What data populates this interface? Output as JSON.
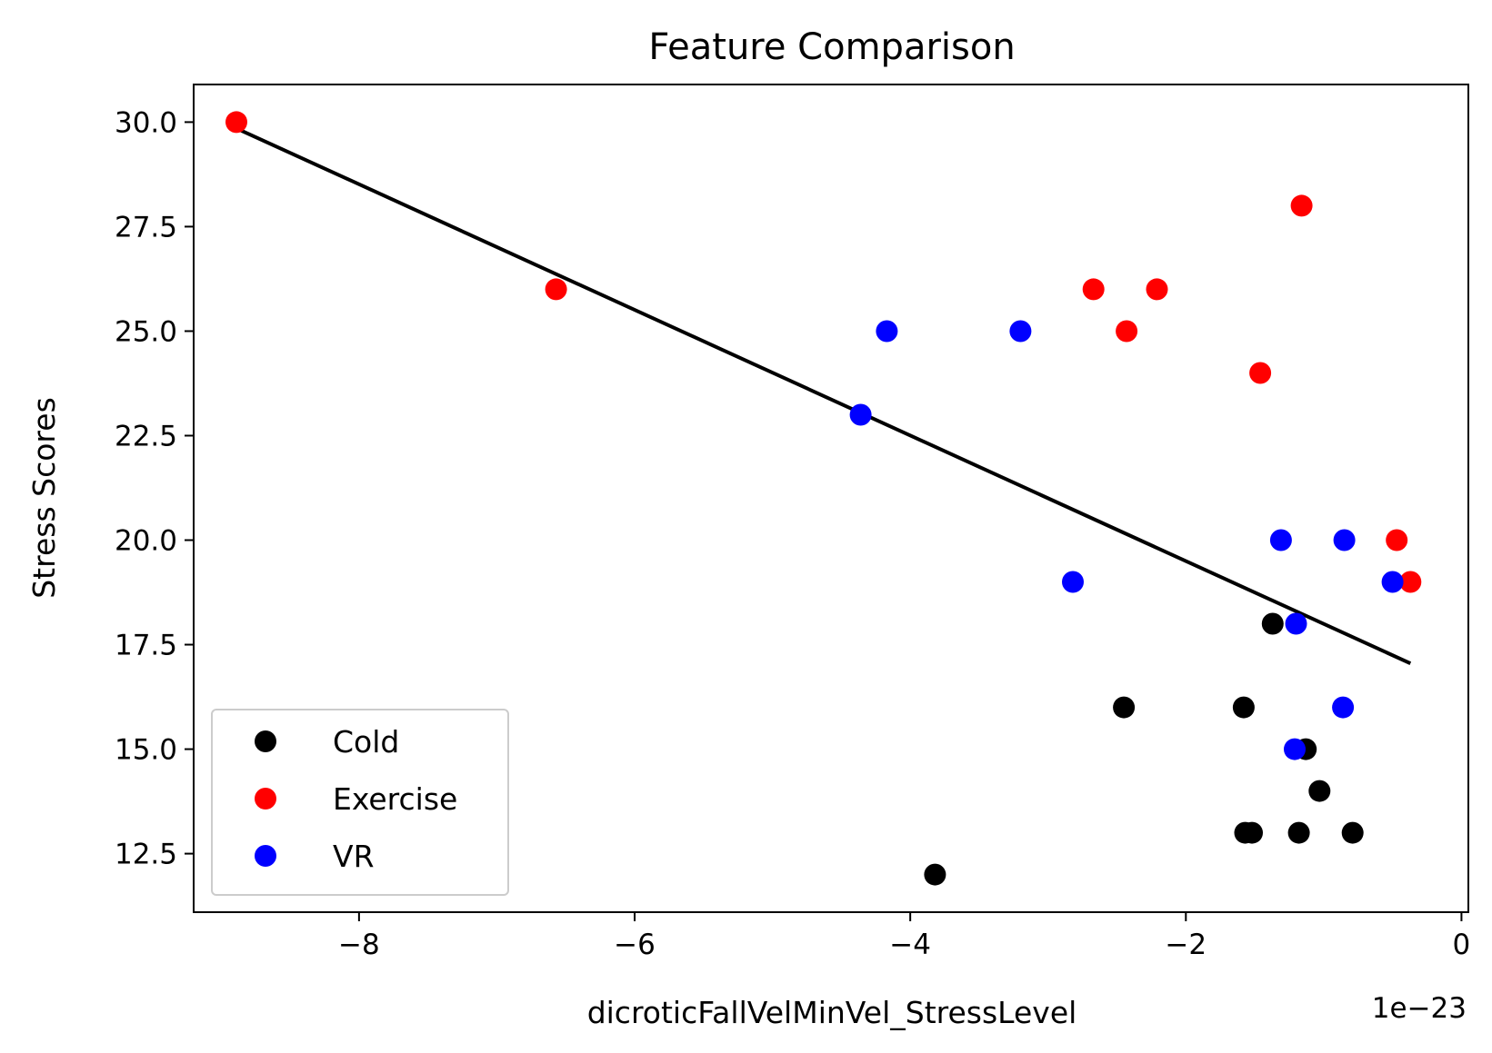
{
  "chart_data": {
    "type": "scatter",
    "title": "Feature Comparison",
    "xlabel": "dicroticFallVelMinVel_StressLevel",
    "ylabel": "Stress Scores",
    "x_offset_label": "1e−23",
    "xlim": [
      -9.2,
      0.05
    ],
    "ylim": [
      11.1,
      30.9
    ],
    "xticks": [
      -8,
      -6,
      -4,
      -2,
      0
    ],
    "xtick_labels": [
      "−8",
      "−6",
      "−4",
      "−2",
      "0"
    ],
    "yticks": [
      12.5,
      15.0,
      17.5,
      20.0,
      22.5,
      25.0,
      27.5,
      30.0
    ],
    "ytick_labels": [
      "12.5",
      "15.0",
      "17.5",
      "20.0",
      "22.5",
      "25.0",
      "27.5",
      "30.0"
    ],
    "legend_position": "lower-left",
    "series": [
      {
        "name": "Cold",
        "color": "#000000",
        "points": [
          {
            "x": -3.82,
            "y": 12
          },
          {
            "x": -2.45,
            "y": 16
          },
          {
            "x": -1.58,
            "y": 16
          },
          {
            "x": -1.57,
            "y": 13
          },
          {
            "x": -1.52,
            "y": 13
          },
          {
            "x": -1.37,
            "y": 18
          },
          {
            "x": -1.18,
            "y": 13
          },
          {
            "x": -1.13,
            "y": 15
          },
          {
            "x": -1.03,
            "y": 14
          },
          {
            "x": -0.79,
            "y": 13
          }
        ]
      },
      {
        "name": "Exercise",
        "color": "#ff0000",
        "points": [
          {
            "x": -8.89,
            "y": 30
          },
          {
            "x": -6.57,
            "y": 26
          },
          {
            "x": -2.67,
            "y": 26
          },
          {
            "x": -2.43,
            "y": 25
          },
          {
            "x": -2.21,
            "y": 26
          },
          {
            "x": -1.46,
            "y": 24
          },
          {
            "x": -1.16,
            "y": 28
          },
          {
            "x": -0.47,
            "y": 20
          },
          {
            "x": -0.37,
            "y": 19
          }
        ]
      },
      {
        "name": "VR",
        "color": "#0000ff",
        "points": [
          {
            "x": -4.36,
            "y": 23
          },
          {
            "x": -4.17,
            "y": 25
          },
          {
            "x": -3.2,
            "y": 25
          },
          {
            "x": -2.82,
            "y": 19
          },
          {
            "x": -1.31,
            "y": 20
          },
          {
            "x": -1.2,
            "y": 18
          },
          {
            "x": -1.21,
            "y": 15
          },
          {
            "x": -0.85,
            "y": 20
          },
          {
            "x": -0.86,
            "y": 16
          },
          {
            "x": -0.5,
            "y": 19
          }
        ]
      }
    ],
    "trend_line": {
      "color": "#000000",
      "points": [
        {
          "x": -8.89,
          "y": 29.85
        },
        {
          "x": -0.37,
          "y": 17.05
        }
      ]
    }
  }
}
